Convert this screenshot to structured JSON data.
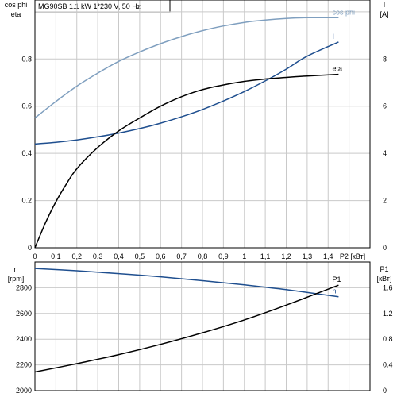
{
  "header": "MG90SB   1.1 kW   1*230 V, 50 Hz",
  "chart_data": [
    {
      "type": "line",
      "panel": "top",
      "xlabel": "P2 [кВт]",
      "xlim": [
        0,
        1.6
      ],
      "xticks": [
        "0",
        "0,1",
        "0,2",
        "0,3",
        "0,4",
        "0,5",
        "0,6",
        "0,7",
        "0,8",
        "0,9",
        "1",
        "1,1",
        "1,2",
        "1,3",
        "1,4"
      ],
      "left_axis": {
        "title1": "cos phi",
        "title2": "eta",
        "ylim": [
          0,
          1.05
        ],
        "ticks": [
          "0",
          "0.2",
          "0.4",
          "0.6",
          "0.8"
        ]
      },
      "right_axis": {
        "title1": "I",
        "title2": "[A]",
        "ylim": [
          0,
          10.5
        ],
        "ticks": [
          "0",
          "2",
          "4",
          "6",
          "8"
        ]
      },
      "grid": true,
      "series": [
        {
          "name": "cos phi",
          "axis": "left",
          "color": "#7f9fbf",
          "x": [
            0,
            0.1,
            0.2,
            0.3,
            0.4,
            0.5,
            0.6,
            0.7,
            0.8,
            0.9,
            1.0,
            1.1,
            1.2,
            1.3,
            1.45
          ],
          "y": [
            0.55,
            0.62,
            0.685,
            0.74,
            0.79,
            0.83,
            0.865,
            0.895,
            0.92,
            0.94,
            0.955,
            0.965,
            0.972,
            0.975,
            0.975
          ]
        },
        {
          "name": "I",
          "axis": "right",
          "color": "#1f4f8f",
          "x": [
            0,
            0.1,
            0.2,
            0.3,
            0.4,
            0.5,
            0.6,
            0.7,
            0.8,
            0.9,
            1.0,
            1.1,
            1.2,
            1.3,
            1.45
          ],
          "y": [
            4.4,
            4.47,
            4.57,
            4.7,
            4.86,
            5.05,
            5.28,
            5.55,
            5.86,
            6.22,
            6.62,
            7.07,
            7.57,
            8.12,
            8.72
          ]
        },
        {
          "name": "eta",
          "axis": "left",
          "color": "#000000",
          "x": [
            0,
            0.05,
            0.1,
            0.15,
            0.2,
            0.3,
            0.4,
            0.5,
            0.6,
            0.7,
            0.8,
            0.9,
            1.0,
            1.1,
            1.2,
            1.3,
            1.45
          ],
          "y": [
            0.0,
            0.105,
            0.195,
            0.27,
            0.335,
            0.425,
            0.495,
            0.55,
            0.6,
            0.64,
            0.67,
            0.69,
            0.705,
            0.715,
            0.722,
            0.728,
            0.735
          ]
        }
      ]
    },
    {
      "type": "line",
      "panel": "bottom",
      "xlim": [
        0,
        1.6
      ],
      "left_axis": {
        "title1": "n",
        "title2": "[rpm]",
        "ylim": [
          2000,
          3000
        ],
        "ticks": [
          "2000",
          "2200",
          "2400",
          "2600",
          "2800"
        ]
      },
      "right_axis": {
        "title1": "P1",
        "title2": "[кВт]",
        "ylim": [
          0,
          2.0
        ],
        "ticks": [
          "0",
          "0.4",
          "0.8",
          "1.2",
          "1.6"
        ]
      },
      "grid": true,
      "series": [
        {
          "name": "n",
          "axis": "left",
          "color": "#1f4f8f",
          "x": [
            0,
            0.2,
            0.4,
            0.6,
            0.8,
            1.0,
            1.2,
            1.45
          ],
          "y": [
            2950,
            2932,
            2910,
            2885,
            2855,
            2822,
            2785,
            2730
          ]
        },
        {
          "name": "P1",
          "axis": "right",
          "color": "#000000",
          "x": [
            0,
            0.2,
            0.4,
            0.6,
            0.8,
            1.0,
            1.2,
            1.45
          ],
          "y": [
            0.29,
            0.42,
            0.56,
            0.72,
            0.9,
            1.1,
            1.33,
            1.64
          ]
        }
      ]
    }
  ]
}
